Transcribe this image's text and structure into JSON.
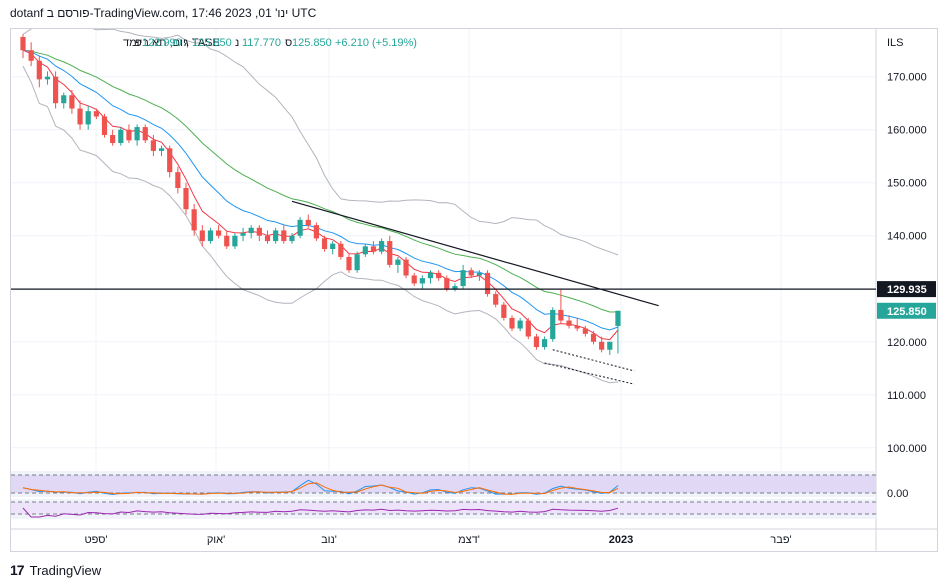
{
  "header": {
    "text": "dotanf פורסם ב-TradingView.com, ינו' 01, 2023 17:46 UTC"
  },
  "legend": {
    "symbol": "יום, תא ביומד, TASE",
    "open_label": "פ",
    "open": "122.990",
    "high_label": "ג",
    "high": "125.850",
    "low_label": "נ",
    "low": "117.770",
    "close_label": "ס",
    "close": "125.850",
    "change": "+6.210 (+5.19%)"
  },
  "footer": {
    "logo_text": "TradingView"
  },
  "colors": {
    "up": "#26a69a",
    "down": "#ef5350",
    "ema_fast": "#f23645",
    "ema_mid": "#2196f3",
    "ema_slow": "#4caf50",
    "bollinger": "#b2b5be",
    "stoch_k": "#2196f3",
    "stoch_d": "#ff6d00",
    "rsi": "#9c27b0",
    "level_line": "#131722"
  },
  "chart_data": {
    "type": "candlestick",
    "currency": "ILS",
    "price_axis": {
      "ticks": [
        100,
        110,
        120,
        130,
        140,
        150,
        160,
        170
      ],
      "tick_labels": [
        "100.000",
        "110.000",
        "120.000",
        "130.000",
        "140.000",
        "150.000",
        "160.000",
        "170.000"
      ],
      "range": [
        96,
        179
      ]
    },
    "time_axis": {
      "labels": [
        "ספט'",
        "אוק'",
        "נוב'",
        "דצמ'",
        "2023",
        "פבר'"
      ]
    },
    "level_line": {
      "value": 129.935,
      "label": "129.935"
    },
    "last_price": {
      "value": 125.85,
      "label": "125.850"
    },
    "oscillator_axis": {
      "label": "0.00"
    },
    "candles": [
      [
        177.5,
        178.0,
        173.5,
        175.0
      ],
      [
        175.0,
        176.5,
        172.0,
        173.0
      ],
      [
        173.0,
        174.0,
        168.0,
        169.5
      ],
      [
        169.5,
        171.0,
        168.5,
        170.0
      ],
      [
        170.0,
        171.0,
        164.0,
        165.0
      ],
      [
        165.0,
        167.0,
        164.0,
        166.5
      ],
      [
        166.5,
        167.5,
        163.0,
        164.0
      ],
      [
        164.0,
        165.5,
        160.0,
        161.0
      ],
      [
        161.0,
        164.5,
        160.0,
        163.5
      ],
      [
        163.5,
        164.0,
        162.0,
        162.5
      ],
      [
        162.5,
        163.0,
        158.5,
        159.0
      ],
      [
        159.0,
        160.0,
        157.0,
        157.5
      ],
      [
        157.5,
        160.5,
        157.0,
        160.0
      ],
      [
        160.0,
        161.0,
        157.5,
        158.0
      ],
      [
        158.0,
        161.0,
        157.0,
        160.5
      ],
      [
        160.5,
        161.0,
        157.5,
        158.0
      ],
      [
        158.0,
        159.0,
        155.0,
        156.0
      ],
      [
        156.0,
        157.0,
        155.0,
        156.5
      ],
      [
        156.5,
        157.0,
        151.0,
        152.0
      ],
      [
        152.0,
        153.0,
        148.0,
        149.0
      ],
      [
        149.0,
        150.0,
        144.0,
        145.0
      ],
      [
        145.0,
        146.0,
        140.0,
        141.0
      ],
      [
        141.0,
        142.0,
        138.0,
        139.0
      ],
      [
        139.0,
        141.5,
        138.5,
        141.0
      ],
      [
        141.0,
        142.0,
        139.5,
        140.0
      ],
      [
        140.0,
        141.0,
        137.5,
        138.0
      ],
      [
        138.0,
        140.5,
        137.5,
        140.0
      ],
      [
        140.0,
        141.5,
        139.0,
        140.5
      ],
      [
        140.5,
        142.0,
        139.5,
        141.5
      ],
      [
        141.5,
        142.0,
        139.0,
        140.0
      ],
      [
        140.0,
        141.0,
        138.5,
        139.0
      ],
      [
        139.0,
        141.5,
        138.5,
        141.0
      ],
      [
        141.0,
        142.0,
        138.5,
        139.0
      ],
      [
        139.0,
        140.5,
        138.5,
        140.0
      ],
      [
        140.0,
        143.5,
        139.5,
        143.0
      ],
      [
        143.0,
        144.0,
        141.5,
        142.0
      ],
      [
        142.0,
        142.5,
        139.0,
        139.5
      ],
      [
        139.5,
        140.0,
        137.0,
        137.5
      ],
      [
        137.5,
        139.0,
        136.5,
        138.5
      ],
      [
        138.5,
        139.0,
        135.5,
        136.0
      ],
      [
        136.0,
        136.5,
        133.0,
        133.5
      ],
      [
        133.5,
        137.0,
        133.0,
        136.5
      ],
      [
        136.5,
        138.5,
        136.0,
        138.0
      ],
      [
        138.0,
        139.0,
        136.5,
        137.0
      ],
      [
        137.0,
        139.5,
        136.5,
        139.0
      ],
      [
        139.0,
        140.0,
        134.0,
        134.5
      ],
      [
        134.5,
        136.0,
        133.0,
        135.5
      ],
      [
        135.5,
        136.0,
        132.0,
        132.5
      ],
      [
        132.5,
        133.0,
        130.5,
        131.0
      ],
      [
        131.0,
        132.5,
        130.0,
        132.0
      ],
      [
        132.0,
        133.5,
        131.0,
        133.0
      ],
      [
        133.0,
        133.5,
        131.5,
        132.0
      ],
      [
        132.0,
        132.5,
        129.5,
        130.0
      ],
      [
        130.0,
        131.0,
        129.5,
        130.5
      ],
      [
        130.5,
        134.5,
        130.0,
        133.5
      ],
      [
        133.5,
        134.0,
        132.0,
        132.5
      ],
      [
        132.5,
        133.5,
        131.5,
        133.0
      ],
      [
        133.0,
        133.5,
        128.5,
        129.0
      ],
      [
        129.0,
        129.5,
        126.5,
        127.0
      ],
      [
        127.0,
        127.5,
        124.0,
        124.5
      ],
      [
        124.5,
        125.0,
        122.0,
        122.5
      ],
      [
        122.5,
        124.5,
        122.0,
        124.0
      ],
      [
        124.0,
        124.5,
        120.5,
        121.0
      ],
      [
        121.0,
        121.5,
        118.5,
        119.0
      ],
      [
        119.0,
        121.0,
        118.5,
        120.5
      ],
      [
        120.5,
        126.5,
        120.0,
        126.0
      ],
      [
        126.0,
        130.0,
        123.5,
        124.0
      ],
      [
        124.0,
        125.0,
        122.5,
        123.0
      ],
      [
        123.0,
        124.5,
        122.0,
        122.5
      ],
      [
        122.5,
        123.0,
        121.0,
        121.5
      ],
      [
        121.5,
        122.0,
        119.5,
        120.0
      ],
      [
        120.0,
        121.0,
        118.0,
        118.5
      ],
      [
        118.5,
        120.0,
        117.5,
        120.0
      ],
      [
        122.99,
        125.85,
        117.77,
        125.85
      ]
    ]
  }
}
